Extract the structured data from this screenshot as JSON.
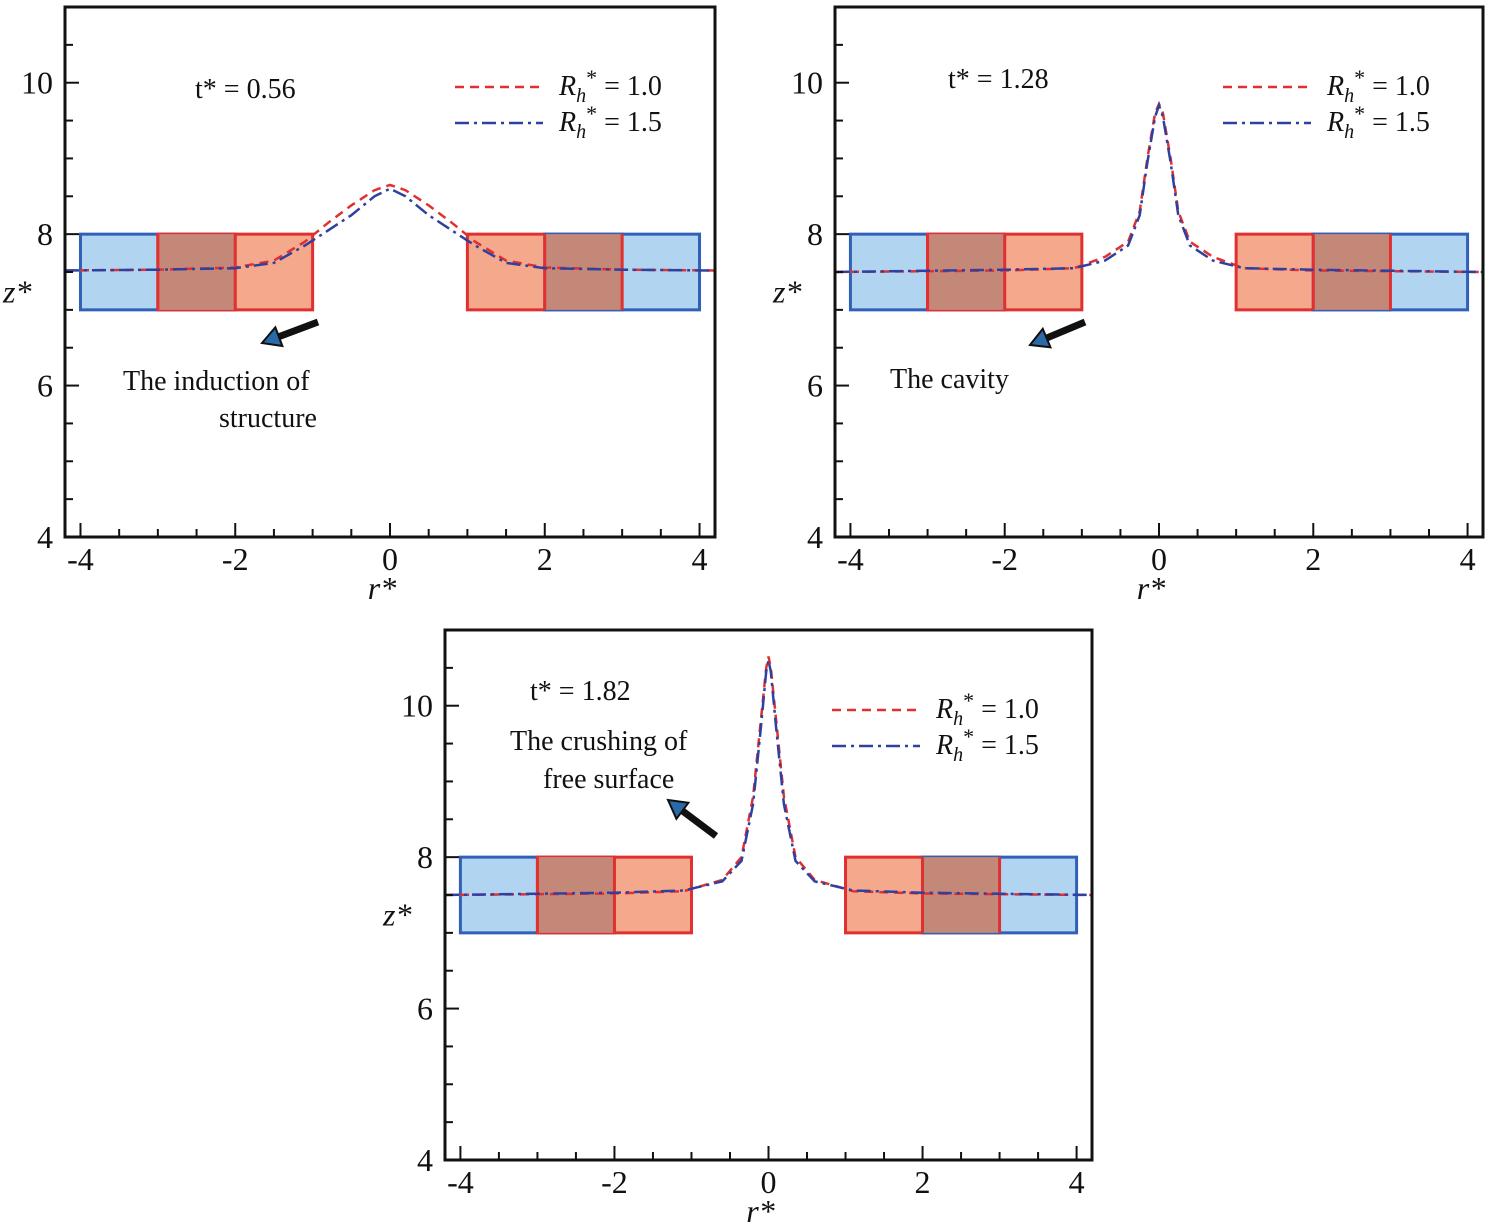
{
  "chart_data": [
    {
      "type": "line",
      "time_label": "t* = 0.56",
      "time_value": 0.56,
      "xlabel": "r*",
      "ylabel": "z*",
      "xlim": [
        -4.2,
        4.2
      ],
      "ylim": [
        4,
        11
      ],
      "xticks": [
        "-4",
        "-2",
        "0",
        "2",
        "4"
      ],
      "yticks": [
        "4",
        "6",
        "8",
        "10"
      ],
      "legend_position": "top-right",
      "annotation": [
        "The induction of",
        "structure"
      ],
      "structures": [
        {
          "series": "Rh* = 1.5",
          "x0": -4,
          "x1": -2,
          "y0": 7.0,
          "y1": 8.0
        },
        {
          "series": "Rh* = 1.0",
          "x0": -3,
          "x1": -1,
          "y0": 7.0,
          "y1": 8.0
        },
        {
          "series": "Rh* = 1.0",
          "x0": 1,
          "x1": 3,
          "y0": 7.0,
          "y1": 8.0
        },
        {
          "series": "Rh* = 1.5",
          "x0": 2,
          "x1": 4,
          "y0": 7.0,
          "y1": 8.0
        }
      ],
      "series": [
        {
          "name": "Rh* = 1.0",
          "color": "#e03030",
          "dash": "dashed",
          "x": [
            -4.2,
            -3.0,
            -2.0,
            -1.5,
            -1.1,
            -0.8,
            -0.5,
            -0.2,
            0.0,
            0.2,
            0.5,
            0.8,
            1.1,
            1.5,
            2.0,
            3.0,
            4.2
          ],
          "y": [
            7.52,
            7.53,
            7.56,
            7.65,
            7.9,
            8.15,
            8.38,
            8.58,
            8.65,
            8.58,
            8.38,
            8.15,
            7.9,
            7.65,
            7.56,
            7.53,
            7.52
          ]
        },
        {
          "name": "Rh* = 1.5",
          "color": "#3040a0",
          "dash": "dashdot",
          "x": [
            -4.2,
            -3.0,
            -2.0,
            -1.5,
            -1.1,
            -0.8,
            -0.5,
            -0.2,
            0.0,
            0.2,
            0.5,
            0.8,
            1.1,
            1.5,
            2.0,
            3.0,
            4.2
          ],
          "y": [
            7.52,
            7.53,
            7.55,
            7.62,
            7.85,
            8.05,
            8.25,
            8.5,
            8.6,
            8.5,
            8.25,
            8.05,
            7.85,
            7.62,
            7.55,
            7.53,
            7.52
          ]
        }
      ]
    },
    {
      "type": "line",
      "time_label": "t* = 1.28",
      "time_value": 1.28,
      "xlabel": "r*",
      "ylabel": "z*",
      "xlim": [
        -4.2,
        4.2
      ],
      "ylim": [
        4,
        11
      ],
      "xticks": [
        "-4",
        "-2",
        "0",
        "2",
        "4"
      ],
      "yticks": [
        "4",
        "6",
        "8",
        "10"
      ],
      "legend_position": "top-right",
      "annotation": [
        "The cavity"
      ],
      "structures": [
        {
          "series": "Rh* = 1.5",
          "x0": -4,
          "x1": -2,
          "y0": 7.0,
          "y1": 8.0
        },
        {
          "series": "Rh* = 1.0",
          "x0": -3,
          "x1": -1,
          "y0": 7.0,
          "y1": 8.0
        },
        {
          "series": "Rh* = 1.0",
          "x0": 1,
          "x1": 3,
          "y0": 7.0,
          "y1": 8.0
        },
        {
          "series": "Rh* = 1.5",
          "x0": 2,
          "x1": 4,
          "y0": 7.0,
          "y1": 8.0
        }
      ],
      "series": [
        {
          "name": "Rh* = 1.0",
          "color": "#e03030",
          "dash": "dashed",
          "x": [
            -4.2,
            -2.0,
            -1.1,
            -0.7,
            -0.4,
            -0.25,
            -0.15,
            -0.05,
            0.0,
            0.05,
            0.15,
            0.25,
            0.4,
            0.7,
            1.1,
            2.0,
            4.2
          ],
          "y": [
            7.5,
            7.52,
            7.55,
            7.7,
            7.9,
            8.3,
            9.0,
            9.6,
            9.72,
            9.6,
            9.0,
            8.3,
            7.9,
            7.7,
            7.55,
            7.52,
            7.5
          ]
        },
        {
          "name": "Rh* = 1.5",
          "color": "#3040a0",
          "dash": "dashdot",
          "x": [
            -4.2,
            -2.0,
            -1.1,
            -0.7,
            -0.4,
            -0.25,
            -0.15,
            -0.05,
            0.0,
            0.05,
            0.15,
            0.25,
            0.4,
            0.7,
            1.1,
            2.0,
            4.2
          ],
          "y": [
            7.5,
            7.53,
            7.55,
            7.65,
            7.85,
            8.25,
            8.95,
            9.55,
            9.7,
            9.55,
            8.95,
            8.25,
            7.85,
            7.65,
            7.55,
            7.53,
            7.5
          ]
        }
      ]
    },
    {
      "type": "line",
      "time_label": "t* = 1.82",
      "time_value": 1.82,
      "xlabel": "r*",
      "ylabel": "z*",
      "xlim": [
        -4.2,
        4.2
      ],
      "ylim": [
        4,
        11
      ],
      "xticks": [
        "-4",
        "-2",
        "0",
        "2",
        "4"
      ],
      "yticks": [
        "4",
        "6",
        "8",
        "10"
      ],
      "legend_position": "top-right",
      "annotation": [
        "The crushing of",
        "free surface"
      ],
      "structures": [
        {
          "series": "Rh* = 1.5",
          "x0": -4,
          "x1": -2,
          "y0": 7.0,
          "y1": 8.0
        },
        {
          "series": "Rh* = 1.0",
          "x0": -3,
          "x1": -1,
          "y0": 7.0,
          "y1": 8.0
        },
        {
          "series": "Rh* = 1.0",
          "x0": 1,
          "x1": 3,
          "y0": 7.0,
          "y1": 8.0
        },
        {
          "series": "Rh* = 1.5",
          "x0": 2,
          "x1": 4,
          "y0": 7.0,
          "y1": 8.0
        }
      ],
      "series": [
        {
          "name": "Rh* = 1.0",
          "color": "#e03030",
          "dash": "dashed",
          "x": [
            -4.2,
            -2.0,
            -1.1,
            -0.6,
            -0.35,
            -0.2,
            -0.1,
            -0.03,
            0.0,
            0.03,
            0.1,
            0.2,
            0.35,
            0.6,
            1.1,
            2.0,
            4.2
          ],
          "y": [
            7.5,
            7.52,
            7.55,
            7.7,
            8.0,
            8.8,
            9.8,
            10.5,
            10.65,
            10.5,
            9.8,
            8.8,
            8.0,
            7.7,
            7.55,
            7.52,
            7.5
          ]
        },
        {
          "name": "Rh* = 1.5",
          "color": "#3040a0",
          "dash": "dashdot",
          "x": [
            -4.2,
            -2.0,
            -1.1,
            -0.6,
            -0.35,
            -0.2,
            -0.1,
            -0.03,
            0.0,
            0.03,
            0.1,
            0.2,
            0.35,
            0.6,
            1.1,
            2.0,
            4.2
          ],
          "y": [
            7.5,
            7.53,
            7.56,
            7.68,
            7.95,
            8.7,
            9.7,
            10.45,
            10.6,
            10.45,
            9.7,
            8.7,
            7.95,
            7.68,
            7.56,
            7.53,
            7.5
          ]
        }
      ]
    }
  ],
  "legend": {
    "r10": {
      "main": "R",
      "sub": "h",
      "sup": "*",
      "value": " = 1.0"
    },
    "r15": {
      "main": "R",
      "sub": "h",
      "sup": "*",
      "value": " = 1.5"
    }
  },
  "colors": {
    "blue_fill": "#a8d0ee",
    "blue_stroke": "#3060b8",
    "red_fill": "#f4a080",
    "red_stroke": "#e03030",
    "overlap_fill": "#c48878"
  }
}
